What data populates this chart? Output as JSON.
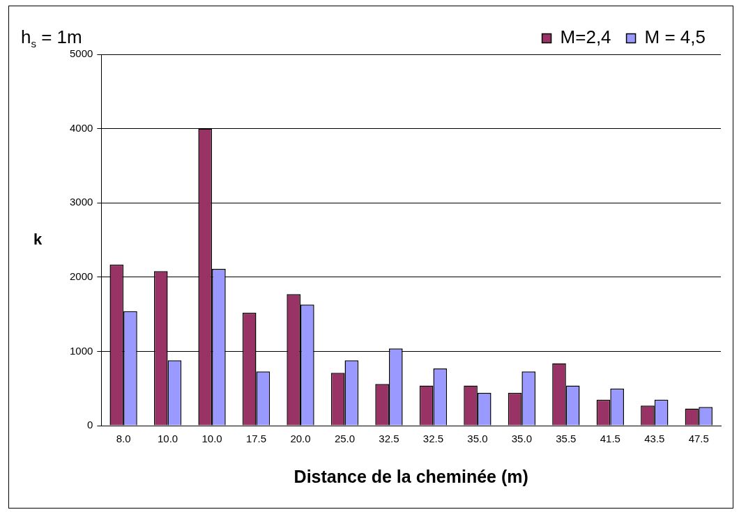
{
  "chart_data": {
    "type": "bar",
    "title": "h$_{s}$ = 1m",
    "xlabel": "Distance de la cheminée (m)",
    "ylabel": "k",
    "categories": [
      "8.0",
      "10.0",
      "10.0",
      "17.5",
      "20.0",
      "25.0",
      "32.5",
      "32.5",
      "35.0",
      "35.0",
      "35.5",
      "41.5",
      "43.5",
      "47.5"
    ],
    "series": [
      {
        "name": "M=2,4",
        "color": "#993366",
        "values": [
          2170,
          2080,
          4000,
          1520,
          1770,
          710,
          560,
          540,
          540,
          440,
          840,
          350,
          270,
          230
        ]
      },
      {
        "name": "M = 4,5",
        "color": "#9999ff",
        "values": [
          1540,
          880,
          2110,
          730,
          1630,
          880,
          1040,
          770,
          440,
          730,
          540,
          500,
          350,
          250
        ]
      }
    ],
    "ylim": [
      0,
      5000
    ],
    "yticks": [
      0,
      1000,
      2000,
      3000,
      4000,
      5000
    ],
    "grid": "y",
    "legend": "top right"
  }
}
